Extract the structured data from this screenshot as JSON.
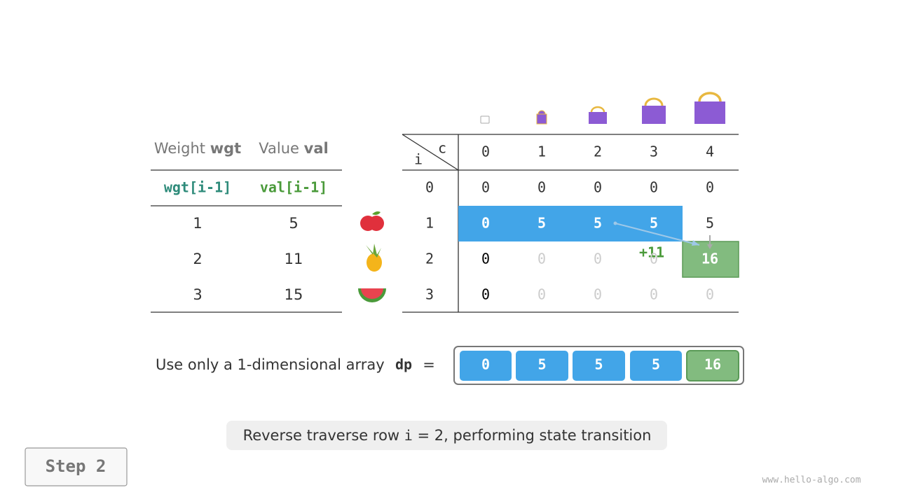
{
  "items_table": {
    "headers": [
      {
        "label": "Weight",
        "symbol": "wgt"
      },
      {
        "label": "Value",
        "symbol": "val"
      }
    ],
    "subheaders": [
      "wgt[i-1]",
      "val[i-1]"
    ],
    "rows": [
      [
        1,
        5
      ],
      [
        2,
        11
      ],
      [
        3,
        15
      ]
    ]
  },
  "dp_table": {
    "corner_col": "c",
    "corner_row": "i",
    "columns": [
      0,
      1,
      2,
      3,
      4
    ],
    "row_labels": [
      0,
      1,
      2,
      3
    ],
    "cells": [
      [
        0,
        0,
        0,
        0,
        0
      ],
      [
        0,
        5,
        5,
        5,
        5
      ],
      [
        0,
        0,
        0,
        0,
        16
      ],
      [
        0,
        0,
        0,
        0,
        0
      ]
    ]
  },
  "annotation": "+11",
  "array": {
    "label": "Use only a 1-dimensional array",
    "name": "dp",
    "equals": "=",
    "values": [
      0,
      5,
      5,
      5,
      16
    ]
  },
  "caption": {
    "before": "Reverse traverse row",
    "variable": "i",
    "after": "= 2, performing state transition"
  },
  "step_button": "Step 2",
  "watermark": "www.hello-algo.com"
}
